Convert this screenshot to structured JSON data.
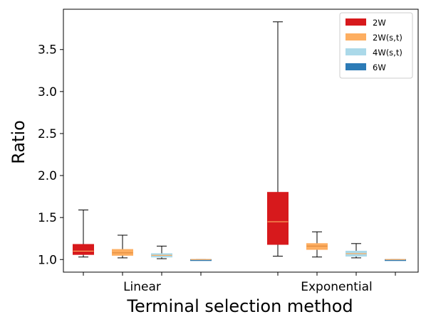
{
  "chart_data": {
    "type": "box",
    "title": "",
    "xlabel": "Terminal selection method",
    "ylabel": "Ratio",
    "ylim": [
      0.85,
      3.98
    ],
    "yticks": [
      1.0,
      1.5,
      2.0,
      2.5,
      3.0,
      3.5
    ],
    "ytick_labels": [
      "1.0",
      "1.5",
      "2.0",
      "2.5",
      "3.0",
      "3.5"
    ],
    "groups": [
      "Linear",
      "Exponential"
    ],
    "legend_position": "top-right",
    "series": [
      {
        "name": "2W",
        "color": "#d7191c",
        "median_color": "#fdae61",
        "boxes": [
          {
            "group": "Linear",
            "whislo": 1.03,
            "q1": 1.06,
            "median": 1.1,
            "q3": 1.18,
            "whishi": 1.59
          },
          {
            "group": "Exponential",
            "whislo": 1.04,
            "q1": 1.18,
            "median": 1.45,
            "q3": 1.8,
            "whishi": 3.83
          }
        ]
      },
      {
        "name": "2W(s,t)",
        "color": "#fdae61",
        "median_color": "#e08a3c",
        "boxes": [
          {
            "group": "Linear",
            "whislo": 1.02,
            "q1": 1.05,
            "median": 1.08,
            "q3": 1.12,
            "whishi": 1.29
          },
          {
            "group": "Exponential",
            "whislo": 1.03,
            "q1": 1.12,
            "median": 1.16,
            "q3": 1.19,
            "whishi": 1.33
          }
        ]
      },
      {
        "name": "4W(s,t)",
        "color": "#abd9e9",
        "median_color": "#fdae61",
        "boxes": [
          {
            "group": "Linear",
            "whislo": 1.01,
            "q1": 1.03,
            "median": 1.05,
            "q3": 1.07,
            "whishi": 1.16
          },
          {
            "group": "Exponential",
            "whislo": 1.02,
            "q1": 1.04,
            "median": 1.07,
            "q3": 1.1,
            "whishi": 1.19
          }
        ]
      },
      {
        "name": "6W",
        "color": "#2c7bb6",
        "median_color": "#fdae61",
        "boxes": [
          {
            "group": "Linear",
            "whislo": 0.99,
            "q1": 0.99,
            "median": 1.0,
            "q3": 1.0,
            "whishi": 1.0
          },
          {
            "group": "Exponential",
            "whislo": 0.99,
            "q1": 0.99,
            "median": 1.0,
            "q3": 1.0,
            "whishi": 1.0
          }
        ]
      }
    ]
  }
}
